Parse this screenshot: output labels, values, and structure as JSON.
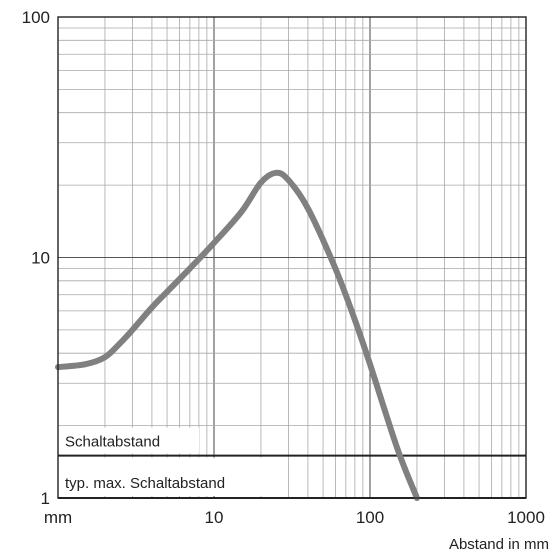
{
  "chart_data": {
    "type": "line",
    "xscale": "log",
    "yscale": "log",
    "xlim": [
      1,
      1000
    ],
    "ylim": [
      1,
      100
    ],
    "grid": true,
    "title": "",
    "xlabel": "Abstand in mm",
    "x_unit_label": "mm",
    "ylabel": "",
    "x_tick_labels": [
      "10",
      "100",
      "1000"
    ],
    "y_tick_labels": [
      "1",
      "10",
      "100"
    ],
    "series": [
      {
        "color": "#808080",
        "points": [
          [
            1.0,
            3.5
          ],
          [
            1.5,
            3.6
          ],
          [
            2.0,
            3.85
          ],
          [
            2.5,
            4.4
          ],
          [
            3.0,
            5.0
          ],
          [
            4.0,
            6.2
          ],
          [
            5.0,
            7.2
          ],
          [
            7.0,
            9.0
          ],
          [
            10.0,
            11.5
          ],
          [
            15.0,
            15.5
          ],
          [
            20.0,
            20.5
          ],
          [
            25.0,
            22.5
          ],
          [
            30.0,
            21.0
          ],
          [
            40.0,
            16.0
          ],
          [
            60.0,
            9.0
          ],
          [
            80.0,
            5.5
          ],
          [
            100.0,
            3.6
          ],
          [
            150.0,
            1.6
          ],
          [
            200.0,
            1.0
          ]
        ]
      }
    ],
    "bands": [
      {
        "label": "Schaltabstand",
        "y": 1.5
      },
      {
        "label": "typ. max. Schaltabstand",
        "y": 1.0
      }
    ]
  }
}
